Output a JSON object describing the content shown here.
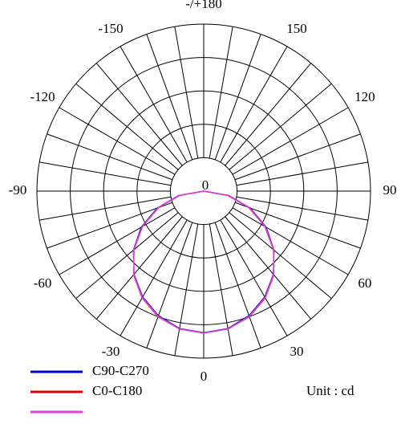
{
  "chart_data": {
    "type": "polar",
    "unit_label": "Unit : cd",
    "center_label": "0",
    "rlim": [
      0,
      5
    ],
    "rgrid": [
      1,
      2,
      3,
      4,
      5
    ],
    "spoke_step": 10,
    "angle_ticks": [
      {
        "value": 180,
        "label": "-/+180"
      },
      150,
      120,
      90,
      60,
      30,
      0,
      -30,
      -60,
      -90,
      -120,
      -150
    ],
    "x": [
      -90,
      -80,
      -70,
      -60,
      -50,
      -40,
      -30,
      -20,
      -10,
      0,
      10,
      20,
      30,
      40,
      50,
      60,
      70,
      80,
      90
    ],
    "series": [
      {
        "name": "C90-C270",
        "color": "#0000cc",
        "values": [
          0,
          0.76,
          1.48,
          2.16,
          2.75,
          3.25,
          3.66,
          3.97,
          4.18,
          4.24,
          4.18,
          3.97,
          3.66,
          3.25,
          2.75,
          2.16,
          1.48,
          0.76,
          0
        ]
      },
      {
        "name": "C0-C180",
        "color": "#dd0000",
        "values": [
          0,
          0.73,
          1.44,
          2.12,
          2.73,
          3.27,
          3.69,
          4.0,
          4.19,
          4.25,
          4.19,
          4.0,
          3.69,
          3.27,
          2.73,
          2.12,
          1.44,
          0.73,
          0
        ]
      },
      {
        "color": "#e040e0",
        "values": [
          0,
          0.74,
          1.45,
          2.13,
          2.74,
          3.26,
          3.68,
          3.99,
          4.19,
          4.25,
          4.19,
          3.99,
          3.68,
          3.26,
          2.74,
          2.13,
          1.45,
          0.74,
          0
        ]
      }
    ]
  }
}
